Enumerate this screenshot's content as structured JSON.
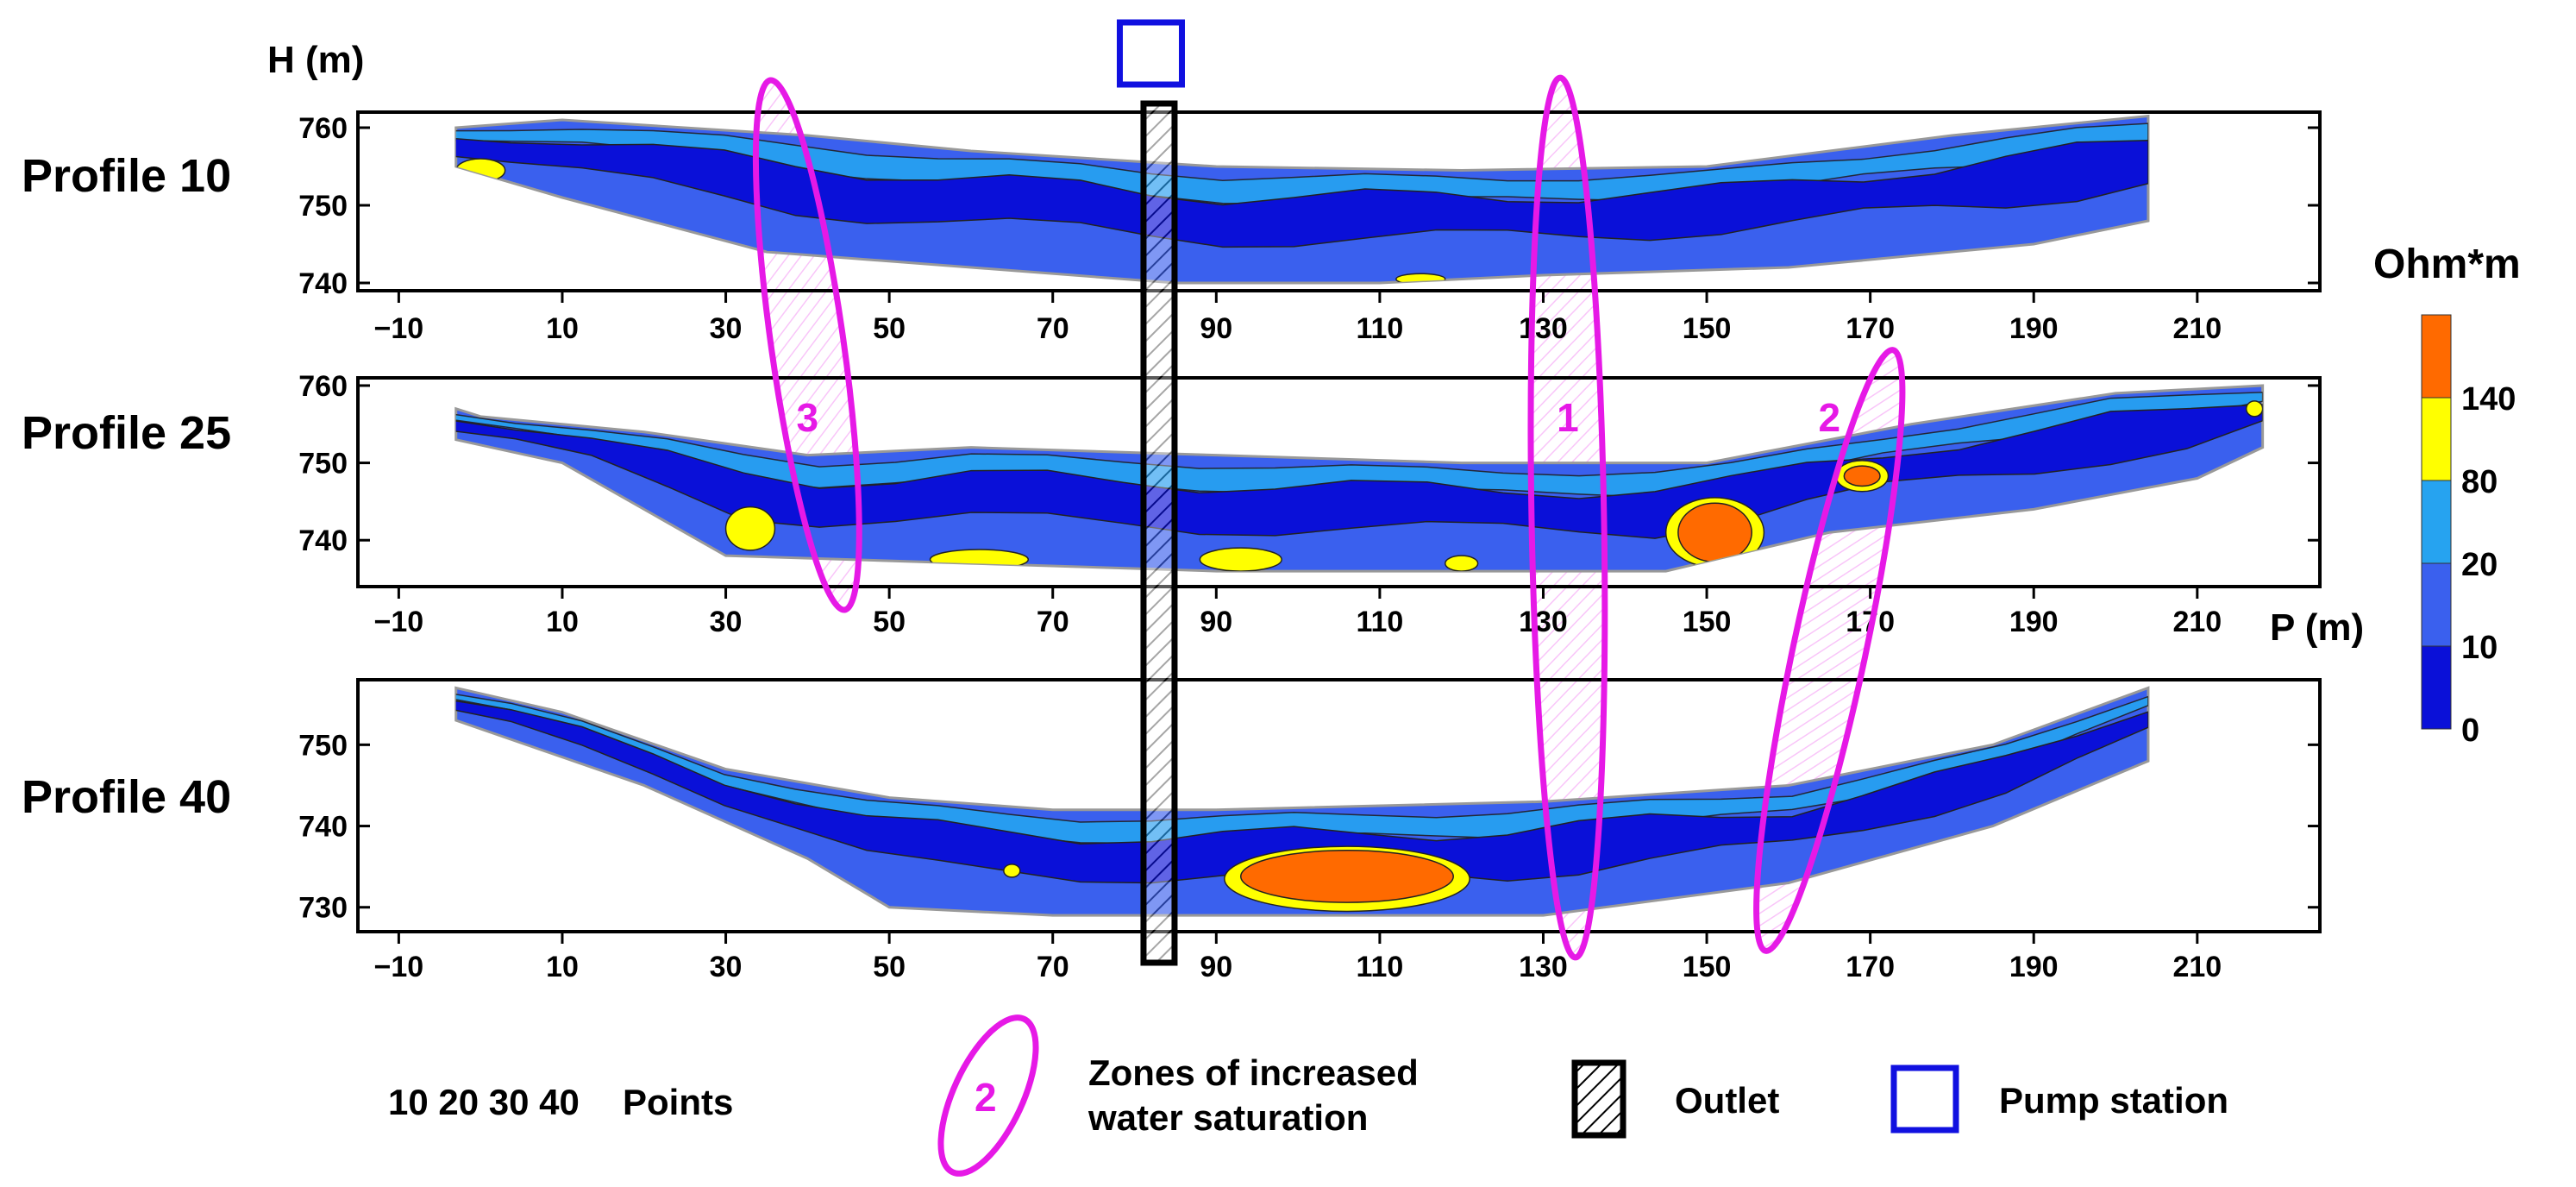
{
  "chart_data": {
    "type": "heatmap",
    "y_axis_label": "H (m)",
    "x_axis_label": "P (m)",
    "x_ticks": [
      -10,
      10,
      30,
      50,
      70,
      90,
      110,
      130,
      150,
      170,
      190,
      210
    ],
    "x_ticks_text": [
      "−10",
      "10",
      "30",
      "50",
      "70",
      "90",
      "110",
      "130",
      "150",
      "170",
      "190",
      "210"
    ],
    "xlim": [
      -15,
      225
    ],
    "profiles": [
      {
        "label": "Profile 10",
        "ylim": [
          739,
          762
        ],
        "y_ticks": [
          740,
          750,
          760
        ],
        "section_top": [
          [
            -3,
            760
          ],
          [
            10,
            761
          ],
          [
            40,
            759
          ],
          [
            60,
            757
          ],
          [
            90,
            755
          ],
          [
            120,
            754.5
          ],
          [
            150,
            755
          ],
          [
            180,
            759
          ],
          [
            204,
            761.5
          ]
        ],
        "section_bottom": [
          [
            -3,
            755
          ],
          [
            10,
            751
          ],
          [
            35,
            744
          ],
          [
            60,
            742
          ],
          [
            85,
            740
          ],
          [
            110,
            740
          ],
          [
            130,
            741
          ],
          [
            160,
            742
          ],
          [
            190,
            745
          ],
          [
            204,
            748
          ]
        ],
        "anomalies": [
          {
            "cx": 0,
            "cy": 754.5,
            "rx": 3,
            "ry": 1.5,
            "class": "80-140"
          },
          {
            "cx": 115,
            "cy": 740.5,
            "rx": 3,
            "ry": 0.7,
            "class": "80-140"
          }
        ]
      },
      {
        "label": "Profile 25",
        "ylim": [
          734,
          761
        ],
        "y_ticks": [
          740,
          750,
          760
        ],
        "section_top": [
          [
            -3,
            757
          ],
          [
            0,
            756
          ],
          [
            20,
            754
          ],
          [
            40,
            751
          ],
          [
            60,
            752
          ],
          [
            90,
            751
          ],
          [
            120,
            750
          ],
          [
            150,
            750
          ],
          [
            175,
            755
          ],
          [
            200,
            759
          ],
          [
            218,
            760
          ]
        ],
        "section_bottom": [
          [
            -3,
            753
          ],
          [
            10,
            750
          ],
          [
            30,
            738
          ],
          [
            60,
            737
          ],
          [
            90,
            736
          ],
          [
            120,
            736
          ],
          [
            145,
            736
          ],
          [
            165,
            741
          ],
          [
            190,
            744
          ],
          [
            210,
            748
          ],
          [
            218,
            752
          ]
        ],
        "anomalies": [
          {
            "cx": 33,
            "cy": 741.5,
            "rx": 3,
            "ry": 2.8,
            "class": "80-140"
          },
          {
            "cx": 61,
            "cy": 737.5,
            "rx": 6,
            "ry": 1.3,
            "class": "80-140"
          },
          {
            "cx": 93,
            "cy": 737.5,
            "rx": 5,
            "ry": 1.5,
            "class": "80-140"
          },
          {
            "cx": 120,
            "cy": 737,
            "rx": 2,
            "ry": 1,
            "class": "80-140"
          },
          {
            "cx": 151,
            "cy": 741,
            "rx": 6,
            "ry": 4.5,
            "class": "80-140"
          },
          {
            "cx": 151,
            "cy": 741,
            "rx": 4.5,
            "ry": 3.8,
            "class": ">140"
          },
          {
            "cx": 169,
            "cy": 748.3,
            "rx": 3.2,
            "ry": 2,
            "class": "80-140"
          },
          {
            "cx": 169,
            "cy": 748.3,
            "rx": 2.2,
            "ry": 1.3,
            "class": ">140"
          },
          {
            "cx": 217,
            "cy": 757,
            "rx": 1,
            "ry": 1,
            "class": "80-140"
          }
        ]
      },
      {
        "label": "Profile 40",
        "ylim": [
          727,
          758
        ],
        "y_ticks": [
          730,
          740,
          750
        ],
        "section_top": [
          [
            -3,
            757
          ],
          [
            10,
            754
          ],
          [
            30,
            747
          ],
          [
            50,
            743.5
          ],
          [
            70,
            742
          ],
          [
            90,
            742
          ],
          [
            130,
            743
          ],
          [
            160,
            745
          ],
          [
            185,
            750
          ],
          [
            204,
            757
          ]
        ],
        "section_bottom": [
          [
            -3,
            753
          ],
          [
            20,
            745
          ],
          [
            40,
            736
          ],
          [
            50,
            730
          ],
          [
            70,
            729
          ],
          [
            90,
            729
          ],
          [
            130,
            729
          ],
          [
            160,
            733
          ],
          [
            185,
            740
          ],
          [
            204,
            748
          ]
        ],
        "anomalies": [
          {
            "cx": 106,
            "cy": 733.5,
            "rx": 15,
            "ry": 4,
            "class": "80-140"
          },
          {
            "cx": 106,
            "cy": 733.8,
            "rx": 13,
            "ry": 3.2,
            "class": ">140"
          },
          {
            "cx": 65,
            "cy": 734.5,
            "rx": 1,
            "ry": 0.8,
            "class": "80-140"
          }
        ]
      }
    ],
    "zones": [
      {
        "label": "1",
        "x": 133,
        "profiles": [
          10,
          25,
          40
        ]
      },
      {
        "label": "2",
        "x": 165,
        "profiles": [
          25,
          40
        ]
      },
      {
        "label": "3",
        "x": 40,
        "profiles": [
          10,
          25
        ]
      }
    ],
    "outlet_x": 83,
    "pump_station_x": 82,
    "colorscale": {
      "title": "Ohm*m",
      "ticks": [
        "0",
        "10",
        "20",
        "80",
        "140"
      ],
      "bands": [
        {
          "range": "0-10",
          "color": "#0a10d8"
        },
        {
          "range": "10-20",
          "color": "#3a60ee"
        },
        {
          "range": "20-80",
          "color": "#26a3f0"
        },
        {
          "range": "80-140",
          "color": "#ffff00"
        },
        {
          "range": ">140",
          "color": "#ff6a00"
        }
      ]
    },
    "legend": {
      "points_values": "10 20 30 40",
      "points_label": "Points",
      "zone_example": "2",
      "zones_text_line1": "Zones of increased",
      "zones_text_line2": "water saturation",
      "outlet_text": "Outlet",
      "pump_text": "Pump station"
    }
  },
  "colors": {
    "zone_magenta": "#e619e6",
    "pump_blue": "#1010e0",
    "outline": "#000000"
  }
}
